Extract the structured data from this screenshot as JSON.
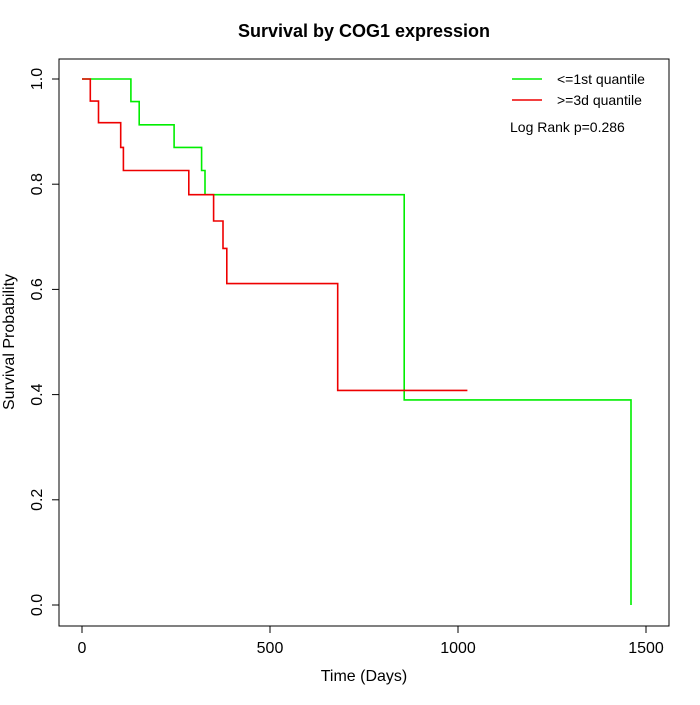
{
  "chart_data": {
    "type": "line",
    "step": true,
    "title": "Survival by COG1 expression",
    "xlabel": "Time (Days)",
    "ylabel": "Survival Probability",
    "xlim": [
      0,
      1500
    ],
    "ylim": [
      0,
      1
    ],
    "xticks": [
      0,
      500,
      1000,
      1500
    ],
    "xtick_labels": [
      "0",
      "500",
      "1000",
      "1500"
    ],
    "yticks": [
      0,
      0.2,
      0.4,
      0.6,
      0.8,
      1.0
    ],
    "ytick_labels": [
      "0.0",
      "0.2",
      "0.4",
      "0.6",
      "0.8",
      "1.0"
    ],
    "grid": false,
    "legend_position": "top-right",
    "annotation": "Log Rank p=0.286",
    "series": [
      {
        "name": "<=1st quantile",
        "color": "#00ee00",
        "x": [
          0,
          130,
          130,
          152,
          152,
          245,
          245,
          318,
          318,
          327,
          327,
          857,
          857,
          1460,
          1460
        ],
        "y": [
          1.0,
          1.0,
          0.957,
          0.957,
          0.913,
          0.913,
          0.87,
          0.87,
          0.826,
          0.826,
          0.78,
          0.78,
          0.39,
          0.39,
          0.0
        ]
      },
      {
        "name": ">=3d quantile",
        "color": "#ee0000",
        "x": [
          0,
          22,
          22,
          44,
          44,
          103,
          103,
          110,
          110,
          284,
          284,
          350,
          350,
          375,
          375,
          385,
          385,
          680,
          680,
          1025
        ],
        "y": [
          1.0,
          1.0,
          0.958,
          0.958,
          0.917,
          0.917,
          0.87,
          0.87,
          0.826,
          0.826,
          0.78,
          0.78,
          0.73,
          0.73,
          0.678,
          0.678,
          0.611,
          0.611,
          0.408,
          0.408
        ]
      }
    ]
  }
}
